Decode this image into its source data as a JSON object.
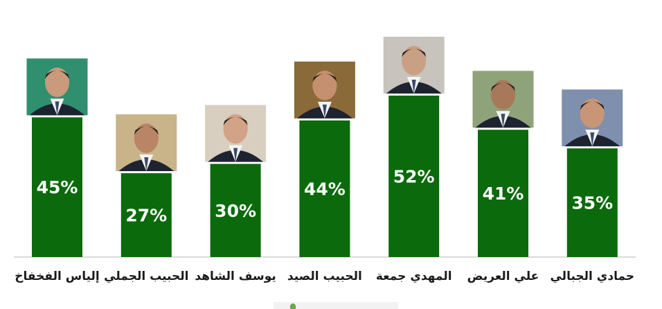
{
  "chart_data": {
    "type": "bar",
    "categories": [
      "إلياس الفخفاخ",
      "الحبيب الجملي",
      "يوسف الشاهد",
      "الحبيب الصيد",
      "المهدي جمعة",
      "علي العريض",
      "حمادي الجبالي"
    ],
    "values": [
      45,
      27,
      30,
      44,
      52,
      41,
      35
    ],
    "value_labels": [
      "45%",
      "27%",
      "30%",
      "44%",
      "52%",
      "41%",
      "35%"
    ],
    "title": "",
    "xlabel": "",
    "ylabel": "",
    "ylim": [
      0,
      52
    ],
    "grid": false,
    "legend": "none",
    "bar_color": "#0b6a0b",
    "category_icons": [
      "person-portrait-icon",
      "person-portrait-icon",
      "person-portrait-icon",
      "person-portrait-icon",
      "person-portrait-icon",
      "person-portrait-icon",
      "person-portrait-icon"
    ]
  },
  "colors": {
    "bar": "#0b6a0b",
    "value_text": "#ffffff",
    "label_text": "#1a1a1a",
    "axis": "#d9d9d9"
  }
}
